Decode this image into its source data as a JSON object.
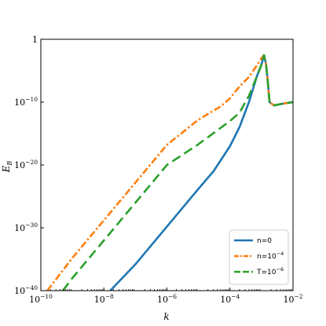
{
  "chart_data": {
    "type": "line",
    "title": "",
    "xlabel": "k",
    "ylabel": "E_B",
    "x_scale": "log",
    "y_scale": "log",
    "xlim": [
      1e-10,
      0.01
    ],
    "ylim": [
      1e-40,
      1
    ],
    "x_ticks": [
      {
        "value": 1e-10,
        "label": "10",
        "exp": "−10"
      },
      {
        "value": 1e-08,
        "label": "10",
        "exp": "−8"
      },
      {
        "value": 1e-06,
        "label": "10",
        "exp": "−6"
      },
      {
        "value": 0.0001,
        "label": "10",
        "exp": "−4"
      },
      {
        "value": 0.01,
        "label": "10",
        "exp": "−2"
      }
    ],
    "y_ticks": [
      {
        "value": 1,
        "label": "1",
        "exp": ""
      },
      {
        "value": 1e-10,
        "label": "10",
        "exp": "−10"
      },
      {
        "value": 1e-20,
        "label": "10",
        "exp": "−20"
      },
      {
        "value": 1e-30,
        "label": "10",
        "exp": "−30"
      },
      {
        "value": 1e-40,
        "label": "10",
        "exp": "−40"
      }
    ],
    "grid": false,
    "legend_position": "bottom-right",
    "series": [
      {
        "name": "n=0",
        "legend_label": "n=0",
        "color": "#1f77b4",
        "dash": "solid",
        "points": [
          [
            1.6e-08,
            1e-40
          ],
          [
            1e-07,
            1.6e-36
          ],
          [
            1e-06,
            1.6e-30
          ],
          [
            1e-05,
            1.6e-24
          ],
          [
            3e-05,
            1e-21
          ],
          [
            0.0001,
            1e-17
          ],
          [
            0.0002,
            1e-14
          ],
          [
            0.0004,
            1e-10
          ],
          [
            0.0007,
            1e-06
          ],
          [
            0.001,
            0.0001
          ],
          [
            0.0012,
            0.003
          ],
          [
            0.0014,
            0.0001
          ],
          [
            0.0016,
            1e-07
          ],
          [
            0.0018,
            1e-10
          ],
          [
            0.0025,
            3e-11
          ],
          [
            0.005,
            6e-11
          ],
          [
            0.01,
            1e-10
          ]
        ]
      },
      {
        "name": "n=10^{-4}",
        "legend_label": "n=10",
        "legend_exp": "−4",
        "color": "#ff7f0e",
        "dash": "dashdot",
        "points": [
          [
            1.6e-10,
            1e-40
          ],
          [
            1e-09,
            1.6e-35
          ],
          [
            1e-08,
            1.6e-29
          ],
          [
            1e-07,
            1.6e-23
          ],
          [
            1e-06,
            1.6e-17
          ],
          [
            1e-05,
            1.6e-13
          ],
          [
            5e-05,
            2e-11
          ],
          [
            0.0001,
            4e-10
          ],
          [
            0.0002,
            3e-08
          ],
          [
            0.0004,
            1e-06
          ],
          [
            0.0007,
            6e-05
          ],
          [
            0.001,
            0.001
          ],
          [
            0.0012,
            0.003
          ],
          [
            0.0014,
            0.0001
          ],
          [
            0.0016,
            1e-07
          ],
          [
            0.0018,
            1e-10
          ],
          [
            0.0025,
            3e-11
          ],
          [
            0.005,
            6e-11
          ],
          [
            0.01,
            1e-10
          ]
        ]
      },
      {
        "name": "T=10^{-6}",
        "legend_label": "T=10",
        "legend_exp": "−6",
        "color": "#2ca02c",
        "dash": "dashed",
        "points": [
          [
            5e-10,
            1e-40
          ],
          [
            1e-09,
            1e-38
          ],
          [
            1e-08,
            1e-32
          ],
          [
            1e-07,
            1e-26
          ],
          [
            1e-06,
            1e-20
          ],
          [
            1e-05,
            2e-17
          ],
          [
            0.0001,
            1e-13
          ],
          [
            0.0002,
            2e-12
          ],
          [
            0.0004,
            1e-09
          ],
          [
            0.0007,
            1e-06
          ],
          [
            0.001,
            0.0001
          ],
          [
            0.0012,
            0.003
          ],
          [
            0.0014,
            0.0001
          ],
          [
            0.0016,
            1e-07
          ],
          [
            0.0018,
            1e-10
          ],
          [
            0.0025,
            3e-11
          ],
          [
            0.005,
            6e-11
          ],
          [
            0.01,
            1e-10
          ]
        ]
      }
    ]
  }
}
